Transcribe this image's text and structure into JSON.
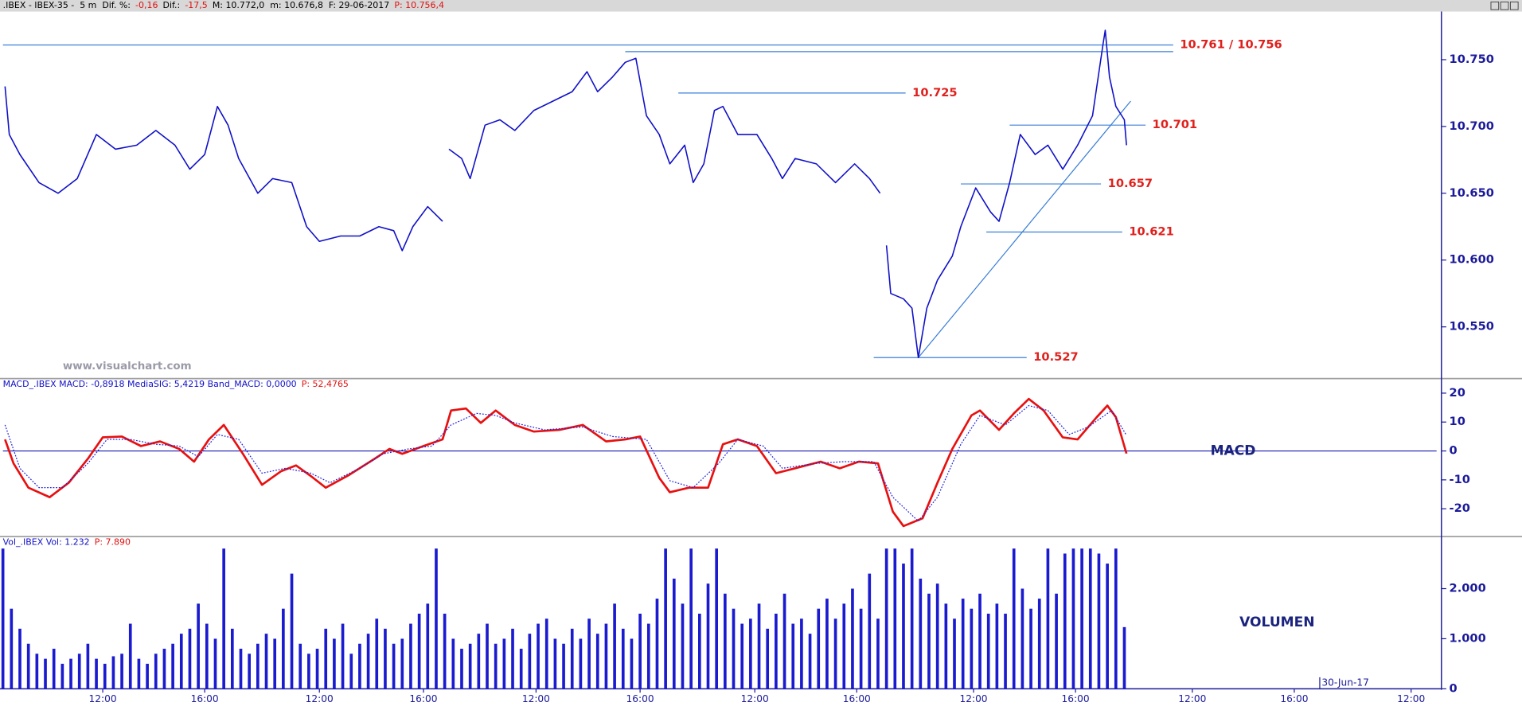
{
  "chart_data": [
    {
      "type": "line",
      "header": [
        {
          "text": ".IBEX - IBEX-35 -  5 m  Dif. %:",
          "color": "#000000"
        },
        {
          "text": "-0,16",
          "color": "#e01010"
        },
        {
          "text": "Dif.:",
          "color": "#000000"
        },
        {
          "text": "-17,5",
          "color": "#e01010"
        },
        {
          "text": "M: 10.772,0  m: 10.676,8  F: 29-06-2017",
          "color": "#000000"
        },
        {
          "text": "P: 10.756,4",
          "color": "#e01010"
        }
      ],
      "watermark": "www.visualchart.com",
      "xlim": [
        0,
        675
      ],
      "ylim": [
        10512,
        10786
      ],
      "yticks": [
        {
          "value": 10550,
          "label": "10.550"
        },
        {
          "value": 10600,
          "label": "10.600"
        },
        {
          "value": 10650,
          "label": "10.650"
        },
        {
          "value": 10700,
          "label": "10.700"
        },
        {
          "value": 10750,
          "label": "10.750"
        }
      ],
      "series": [
        {
          "color": "#1010c8",
          "width": 1.3,
          "x": [
            1,
            3,
            8,
            17,
            26,
            35,
            44,
            53,
            63,
            72,
            81,
            88,
            95,
            101,
            106,
            111,
            120,
            127,
            136,
            143,
            149,
            159,
            168,
            177,
            184,
            188,
            193,
            200,
            207,
            209,
            210,
            216,
            220,
            227,
            234,
            241,
            250,
            259,
            268,
            275,
            280,
            287,
            293,
            298,
            303,
            309,
            314,
            321,
            325,
            330,
            335,
            339,
            346,
            355,
            362,
            367,
            373,
            383,
            392,
            401,
            408,
            413,
            414,
            416,
            418,
            424,
            428,
            431,
            435,
            440,
            447,
            451,
            458,
            465,
            469,
            474,
            479,
            486,
            492,
            499,
            506,
            513,
            518,
            519,
            521,
            524,
            528,
            529
          ],
          "values": [
            10730,
            10694,
            10679,
            10658,
            10650,
            10661,
            10694,
            10683,
            10686,
            10697,
            10686,
            10668,
            10679,
            10715,
            10701,
            10676,
            10650,
            10661,
            10658,
            10625,
            10614,
            10618,
            10618,
            10625,
            10622,
            10607,
            10625,
            10640,
            10629,
            null,
            10683,
            10676,
            10661,
            10701,
            10705,
            10697,
            10712,
            10719,
            10726,
            10741,
            10726,
            10737,
            10748,
            10751,
            10708,
            10694,
            10672,
            10686,
            10658,
            10672,
            10712,
            10715,
            10694,
            10694,
            10676,
            10661,
            10676,
            10672,
            10658,
            10672,
            10661,
            10650,
            null,
            10611,
            10575,
            10571,
            10564,
            10527,
            10564,
            10585,
            10603,
            10625,
            10654,
            10636,
            10629,
            10658,
            10694,
            10679,
            10686,
            10668,
            10686,
            10708,
            10762,
            10772,
            10737,
            10715,
            10705,
            10686
          ]
        }
      ],
      "annotation_color": "#3b7fd6",
      "annotation_label_color": "#e0201c",
      "annotations": [
        {
          "label": "10.761 / 10.756",
          "levels": [
            {
              "value": 10761,
              "x": [
                0,
                551
              ]
            },
            {
              "value": 10756,
              "x": [
                293,
                551
              ]
            }
          ]
        },
        {
          "label": "10.725",
          "levels": [
            {
              "value": 10725,
              "x": [
                318,
                425
              ]
            }
          ]
        },
        {
          "label": "10.701",
          "levels": [
            {
              "value": 10701,
              "x": [
                474,
                538
              ]
            }
          ]
        },
        {
          "label": "10.657",
          "levels": [
            {
              "value": 10657,
              "x": [
                451,
                517
              ]
            }
          ]
        },
        {
          "label": "10.621",
          "levels": [
            {
              "value": 10621,
              "x": [
                463,
                527
              ]
            }
          ]
        },
        {
          "label": "10.527",
          "levels": [
            {
              "value": 10527,
              "x": [
                410,
                482
              ]
            }
          ]
        }
      ],
      "trendline": {
        "x": [
          431,
          531
        ],
        "y": [
          10527,
          10719
        ]
      }
    },
    {
      "type": "line",
      "header": [
        {
          "text": "MACD_.IBEX MACD: -0,8918 MediaSIG: 5,4219 Band_MACD: 0,0000",
          "color": "#1010c8"
        },
        {
          "text": "P: 52,4765",
          "color": "#e01010"
        }
      ],
      "panel_label": "MACD",
      "xlim": [
        0,
        675
      ],
      "ylim": [
        -29.3,
        22.7
      ],
      "yticks": [
        -20,
        -10,
        0,
        10,
        20
      ],
      "band": 0,
      "series": [
        {
          "color": "#e81010",
          "width": 2.2,
          "x": [
            1,
            5,
            12,
            22,
            31,
            40,
            47,
            56,
            65,
            74,
            83,
            90,
            97,
            104,
            113,
            122,
            131,
            138,
            145,
            152,
            163,
            175,
            182,
            188,
            198,
            207,
            211,
            218,
            225,
            232,
            241,
            250,
            262,
            273,
            284,
            293,
            300,
            309,
            314,
            323,
            332,
            339,
            346,
            355,
            364,
            373,
            385,
            394,
            403,
            412,
            419,
            424,
            433,
            440,
            447,
            456,
            460,
            469,
            476,
            483,
            490,
            499,
            506,
            515,
            520,
            524,
            529
          ],
          "values": [
            4,
            -4.3,
            -12.7,
            -16,
            -11,
            -2.7,
            4.7,
            5,
            1.7,
            3.3,
            0.7,
            -3.7,
            4,
            9,
            -1,
            -11.7,
            -7,
            -5,
            -8.7,
            -12.7,
            -8.3,
            -2.7,
            0.7,
            -1,
            1.7,
            4,
            14,
            14.7,
            9.7,
            14,
            9,
            6.7,
            7.3,
            9,
            3.3,
            4,
            5,
            -9.3,
            -14.3,
            -12.7,
            -12.7,
            2.3,
            4,
            1.7,
            -7.7,
            -6,
            -3.7,
            -6,
            -3.7,
            -4.3,
            -21,
            -26,
            -23.3,
            -11,
            0.7,
            12.3,
            14,
            7.3,
            13,
            18,
            14,
            4.7,
            4,
            11.7,
            15.7,
            11.7,
            -0.9
          ]
        },
        {
          "color": "#2020e0",
          "width": 1,
          "dash": "dotted",
          "x": [
            1,
            8,
            17,
            28,
            40,
            49,
            60,
            72,
            83,
            92,
            101,
            111,
            122,
            133,
            145,
            154,
            168,
            179,
            191,
            202,
            211,
            223,
            232,
            241,
            255,
            273,
            287,
            303,
            314,
            325,
            337,
            346,
            358,
            367,
            383,
            396,
            410,
            419,
            431,
            440,
            451,
            460,
            472,
            483,
            492,
            502,
            511,
            522,
            529
          ],
          "values": [
            9,
            -6,
            -12.7,
            -12.7,
            -4.3,
            4,
            4,
            2.3,
            1.7,
            -2,
            5.7,
            4,
            -7.7,
            -6,
            -7.7,
            -11,
            -6,
            -1,
            0.7,
            1.7,
            9,
            13,
            12.3,
            9.7,
            7.3,
            8.3,
            5,
            4,
            -10.3,
            -12.7,
            -4.3,
            4,
            1.7,
            -6,
            -4.3,
            -3.7,
            -3.7,
            -16,
            -24.3,
            -16,
            2.3,
            12.3,
            9,
            15.7,
            14,
            5.7,
            8.3,
            14,
            5.4
          ]
        }
      ]
    },
    {
      "type": "bar",
      "header": [
        {
          "text": "Vol_.IBEX Vol: 1.232",
          "color": "#1010c8"
        },
        {
          "text": "P: 7.890",
          "color": "#e01010"
        }
      ],
      "panel_label": "VOLUMEN",
      "color": "#1a1ad0",
      "xlim": [
        0,
        675
      ],
      "ylim": [
        0,
        2885
      ],
      "yticks": [
        0,
        {
          "value": 1000,
          "label": "1.000"
        },
        {
          "value": 2000,
          "label": "2.000"
        }
      ],
      "xticks": [
        {
          "value": 47,
          "label": "12:00"
        },
        {
          "value": 95,
          "label": "16:00"
        },
        {
          "value": 149,
          "label": "12:00"
        },
        {
          "value": 198,
          "label": "16:00"
        },
        {
          "value": 251,
          "label": "12:00"
        },
        {
          "value": 300,
          "label": "16:00"
        },
        {
          "value": 354,
          "label": "12:00"
        },
        {
          "value": 402,
          "label": "16:00"
        },
        {
          "value": 457,
          "label": "12:00"
        },
        {
          "value": 505,
          "label": "16:00"
        },
        {
          "value": 560,
          "label": "12:00"
        },
        {
          "value": 608,
          "label": "16:00"
        },
        {
          "value": 663,
          "label": "12:00"
        }
      ],
      "date_ticks": [
        {
          "value": 620,
          "label": "30-Jun-17"
        }
      ],
      "x": [
        0,
        4,
        8,
        12,
        16,
        20,
        24,
        28,
        32,
        36,
        40,
        44,
        48,
        52,
        56,
        60,
        64,
        68,
        72,
        76,
        80,
        84,
        88,
        92,
        96,
        100,
        104,
        108,
        112,
        116,
        120,
        124,
        128,
        132,
        136,
        140,
        144,
        148,
        152,
        156,
        160,
        164,
        168,
        172,
        176,
        180,
        184,
        188,
        192,
        196,
        200,
        204,
        208,
        212,
        216,
        220,
        224,
        228,
        232,
        236,
        240,
        244,
        248,
        252,
        256,
        260,
        264,
        268,
        272,
        276,
        280,
        284,
        288,
        292,
        296,
        300,
        304,
        308,
        312,
        316,
        320,
        324,
        328,
        332,
        336,
        340,
        344,
        348,
        352,
        356,
        360,
        364,
        368,
        372,
        376,
        380,
        384,
        388,
        392,
        396,
        400,
        404,
        408,
        412,
        416,
        420,
        424,
        428,
        432,
        436,
        440,
        444,
        448,
        452,
        456,
        460,
        464,
        468,
        472,
        476,
        480,
        484,
        488,
        492,
        496,
        500,
        504,
        508,
        512,
        516,
        520,
        524,
        528
      ],
      "values": [
        2800,
        1600,
        1200,
        900,
        700,
        600,
        800,
        500,
        600,
        700,
        900,
        600,
        500,
        650,
        700,
        1300,
        600,
        500,
        700,
        800,
        900,
        1100,
        1200,
        1700,
        1300,
        1000,
        2800,
        1200,
        800,
        700,
        900,
        1100,
        1000,
        1600,
        2300,
        900,
        700,
        800,
        1200,
        1000,
        1300,
        700,
        900,
        1100,
        1400,
        1200,
        900,
        1000,
        1300,
        1500,
        1700,
        2800,
        1500,
        1000,
        800,
        900,
        1100,
        1300,
        900,
        1000,
        1200,
        800,
        1100,
        1300,
        1400,
        1000,
        900,
        1200,
        1000,
        1400,
        1100,
        1300,
        1700,
        1200,
        1000,
        1500,
        1300,
        1800,
        2800,
        2200,
        1700,
        2800,
        1500,
        2100,
        2800,
        1900,
        1600,
        1300,
        1400,
        1700,
        1200,
        1500,
        1900,
        1300,
        1400,
        1100,
        1600,
        1800,
        1400,
        1700,
        2000,
        1600,
        2300,
        1400,
        2800,
        2800,
        2500,
        2800,
        2200,
        1900,
        2100,
        1700,
        1400,
        1800,
        1600,
        1900,
        1500,
        1700,
        1500,
        2800,
        2000,
        1600,
        1800,
        2800,
        1900,
        2700,
        2800,
        2800,
        2800,
        2700,
        2500,
        2800,
        1232
      ]
    }
  ]
}
